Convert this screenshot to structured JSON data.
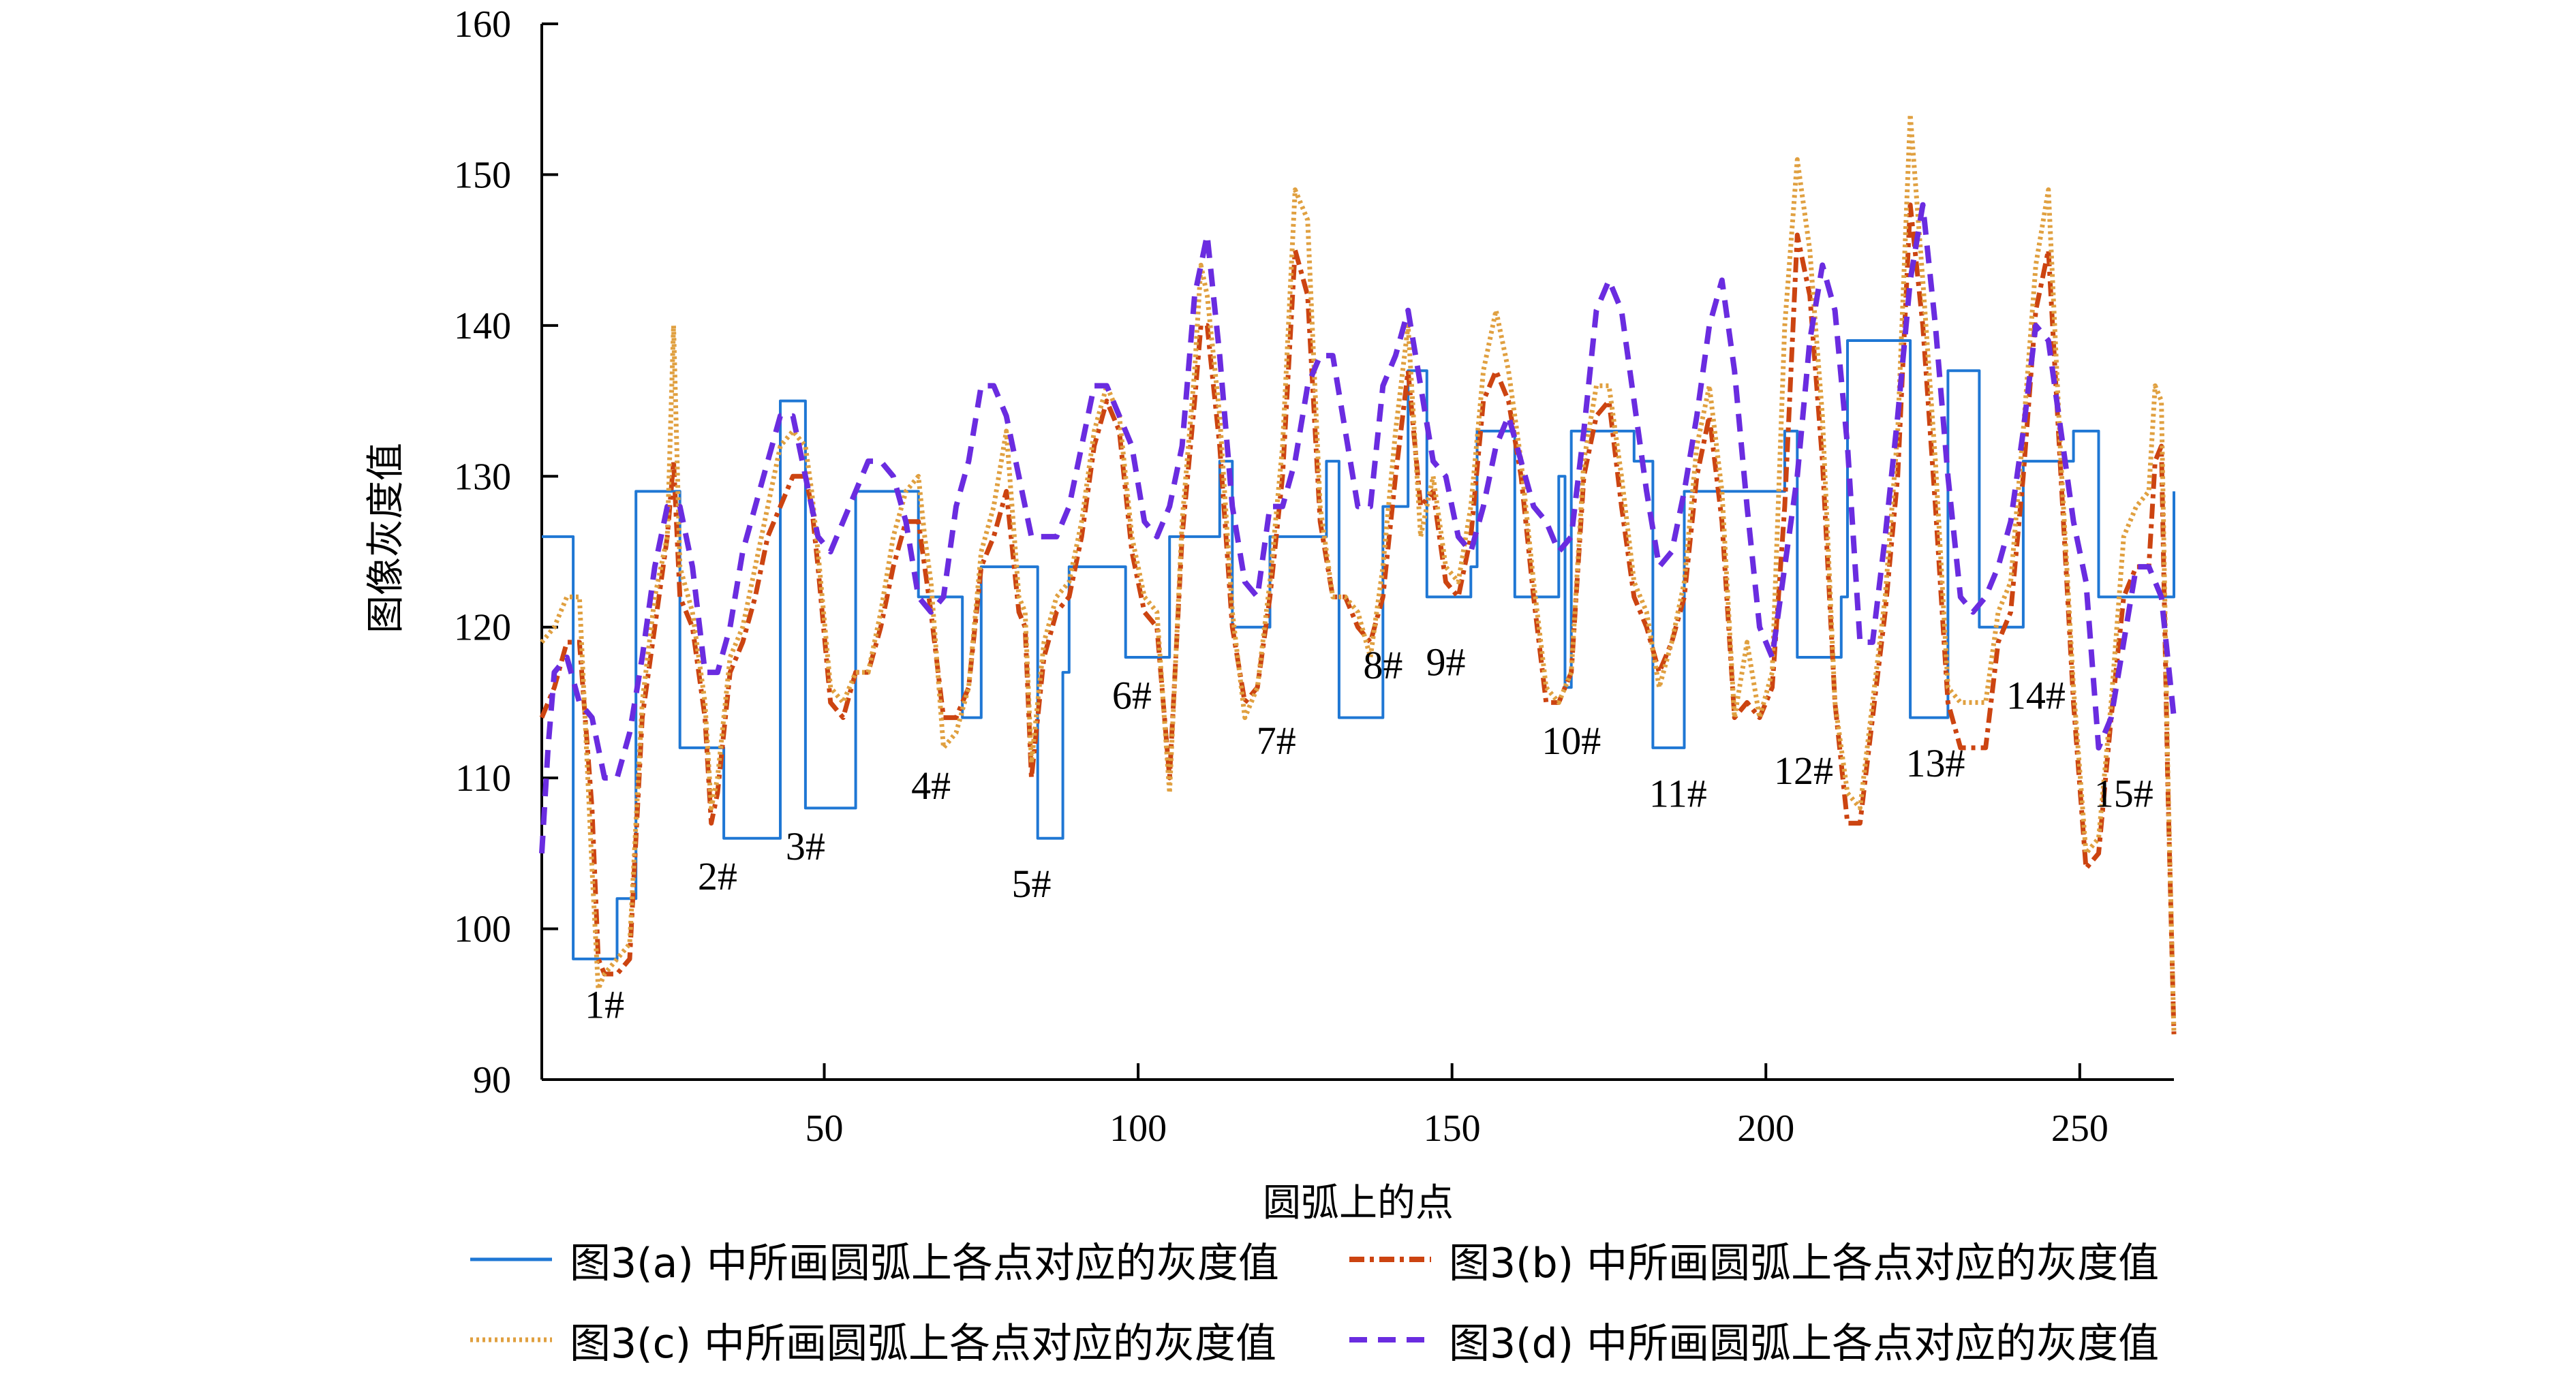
{
  "chart_data": {
    "type": "line",
    "title": "",
    "xlabel": "圆弧上的点",
    "ylabel": "图像灰度值",
    "xlim": [
      5,
      265
    ],
    "ylim": [
      90,
      160
    ],
    "xticks": [
      50,
      100,
      150,
      200,
      250
    ],
    "yticks": [
      90,
      100,
      110,
      120,
      130,
      140,
      150,
      160
    ],
    "grid": false,
    "legend_position": "bottom",
    "series": [
      {
        "name": "图3(a) 中所画圆弧上各点对应的灰度值",
        "color": "#1f77d4",
        "style": "solid",
        "step": true,
        "x": [
          5,
          9,
          10,
          14,
          17,
          18,
          20,
          25,
          27,
          31,
          34,
          37,
          43,
          44,
          47,
          49,
          55,
          56,
          65,
          67,
          72,
          73,
          75,
          79,
          80,
          84,
          85,
          88,
          89,
          93,
          94,
          98,
          99,
          105,
          106,
          112,
          113,
          114,
          115,
          120,
          121,
          123,
          124,
          125,
          130,
          131,
          132,
          138,
          139,
          142,
          143,
          145,
          146,
          150,
          151,
          153,
          154,
          159,
          160,
          166,
          167,
          168,
          169,
          170,
          178,
          179,
          180,
          182,
          186,
          187,
          193,
          194,
          203,
          204,
          205,
          212,
          213,
          222,
          223,
          228,
          229,
          233,
          234,
          240,
          241,
          248,
          249,
          252,
          253,
          264,
          265
        ],
        "y": [
          126,
          126,
          98,
          98,
          102,
          102,
          129,
          129,
          112,
          112,
          106,
          106,
          135,
          135,
          108,
          108,
          129,
          129,
          122,
          122,
          114,
          114,
          124,
          124,
          124,
          106,
          106,
          117,
          124,
          124,
          124,
          118,
          118,
          126,
          126,
          126,
          131,
          131,
          120,
          120,
          126,
          126,
          126,
          126,
          131,
          131,
          114,
          114,
          128,
          128,
          137,
          137,
          122,
          122,
          122,
          124,
          133,
          133,
          122,
          122,
          130,
          116,
          133,
          133,
          133,
          131,
          131,
          112,
          112,
          129,
          129,
          129,
          133,
          133,
          118,
          122,
          139,
          139,
          114,
          114,
          137,
          137,
          120,
          120,
          131,
          131,
          133,
          133,
          122,
          122,
          129
        ]
      },
      {
        "name": "图3(b) 中所画圆弧上各点对应的灰度值",
        "color": "#cc4411",
        "style": "dashdot",
        "x": [
          5,
          7,
          9,
          11,
          13,
          14,
          15,
          17,
          19,
          21,
          23,
          25,
          26,
          27,
          29,
          31,
          32,
          33,
          35,
          37,
          39,
          41,
          43,
          45,
          47,
          48,
          49,
          51,
          53,
          55,
          57,
          59,
          61,
          63,
          65,
          66,
          67,
          69,
          71,
          73,
          75,
          77,
          79,
          81,
          82,
          83,
          85,
          87,
          89,
          91,
          93,
          95,
          97,
          99,
          101,
          103,
          105,
          107,
          109,
          110,
          111,
          113,
          115,
          117,
          119,
          121,
          123,
          125,
          127,
          129,
          131,
          133,
          135,
          137,
          139,
          141,
          143,
          145,
          147,
          149,
          151,
          153,
          155,
          157,
          159,
          161,
          163,
          165,
          167,
          169,
          171,
          173,
          175,
          177,
          179,
          181,
          183,
          185,
          187,
          189,
          191,
          193,
          195,
          197,
          199,
          201,
          203,
          205,
          207,
          209,
          211,
          213,
          215,
          217,
          219,
          221,
          223,
          225,
          227,
          229,
          231,
          233,
          235,
          237,
          239,
          241,
          243,
          245,
          247,
          249,
          251,
          253,
          255,
          257,
          259,
          261,
          262,
          263,
          264,
          265
        ],
        "y": [
          114,
          116,
          119,
          119,
          108,
          98,
          97,
          97,
          98,
          114,
          120,
          126,
          131,
          122,
          120,
          114,
          107,
          109,
          117,
          119,
          122,
          126,
          128,
          130,
          130,
          128,
          124,
          115,
          114,
          117,
          117,
          120,
          124,
          127,
          127,
          124,
          121,
          114,
          114,
          116,
          124,
          126,
          129,
          121,
          120,
          110,
          118,
          121,
          122,
          126,
          132,
          135,
          133,
          125,
          121,
          120,
          110,
          126,
          135,
          140,
          140,
          132,
          120,
          115,
          116,
          122,
          130,
          145,
          142,
          127,
          122,
          122,
          120,
          119,
          122,
          130,
          137,
          128,
          129,
          123,
          122,
          126,
          135,
          137,
          135,
          130,
          122,
          115,
          115,
          117,
          130,
          134,
          135,
          128,
          122,
          120,
          117,
          119,
          122,
          130,
          134,
          127,
          114,
          115,
          114,
          116,
          128,
          146,
          142,
          131,
          115,
          107,
          107,
          114,
          121,
          130,
          148,
          140,
          128,
          115,
          112,
          112,
          112,
          119,
          121,
          130,
          141,
          145,
          130,
          115,
          104,
          105,
          114,
          122,
          124,
          124,
          131,
          132,
          110,
          93
        ]
      },
      {
        "name": "图3(c) 中所画圆弧上各点对应的灰度值",
        "color": "#e0a040",
        "style": "dotted",
        "x": [
          5,
          7,
          9,
          11,
          13,
          14,
          15,
          17,
          19,
          21,
          23,
          25,
          26,
          27,
          29,
          31,
          32,
          33,
          35,
          37,
          39,
          41,
          43,
          45,
          47,
          48,
          49,
          51,
          53,
          55,
          57,
          59,
          61,
          63,
          65,
          66,
          67,
          69,
          71,
          73,
          75,
          77,
          79,
          81,
          82,
          83,
          85,
          87,
          89,
          91,
          93,
          95,
          97,
          99,
          101,
          103,
          105,
          107,
          109,
          110,
          111,
          113,
          115,
          117,
          119,
          121,
          123,
          125,
          127,
          129,
          131,
          133,
          135,
          137,
          139,
          141,
          143,
          145,
          147,
          149,
          151,
          153,
          155,
          157,
          159,
          161,
          163,
          165,
          167,
          169,
          171,
          173,
          175,
          177,
          179,
          181,
          183,
          185,
          187,
          189,
          191,
          193,
          195,
          197,
          199,
          201,
          203,
          205,
          207,
          209,
          211,
          213,
          215,
          217,
          219,
          221,
          223,
          225,
          227,
          229,
          231,
          233,
          235,
          237,
          239,
          241,
          243,
          245,
          247,
          249,
          251,
          253,
          255,
          257,
          259,
          261,
          262,
          263,
          264,
          265
        ],
        "y": [
          119,
          120,
          122,
          122,
          104,
          96,
          97,
          98,
          99,
          115,
          122,
          126,
          140,
          124,
          121,
          115,
          108,
          110,
          118,
          120,
          124,
          128,
          132,
          133,
          132,
          129,
          125,
          116,
          115,
          117,
          117,
          121,
          126,
          129,
          130,
          126,
          123,
          112,
          113,
          116,
          125,
          128,
          133,
          122,
          121,
          111,
          119,
          122,
          123,
          127,
          133,
          136,
          134,
          126,
          122,
          121,
          109,
          127,
          137,
          144,
          142,
          134,
          121,
          114,
          116,
          123,
          132,
          149,
          147,
          128,
          122,
          122,
          121,
          118,
          124,
          133,
          140,
          126,
          130,
          124,
          123,
          128,
          137,
          141,
          137,
          131,
          123,
          116,
          115,
          117,
          131,
          136,
          136,
          130,
          123,
          121,
          116,
          119,
          123,
          132,
          136,
          129,
          114,
          119,
          114,
          117,
          140,
          151,
          145,
          134,
          115,
          109,
          108,
          115,
          122,
          133,
          154,
          143,
          131,
          116,
          115,
          115,
          115,
          121,
          123,
          133,
          144,
          149,
          131,
          116,
          105,
          106,
          115,
          126,
          128,
          129,
          136,
          135,
          111,
          93
        ]
      },
      {
        "name": "图3(d) 中所画圆弧上各点对应的灰度值",
        "color": "#6a2ce0",
        "style": "dashed",
        "x": [
          5,
          6,
          7,
          9,
          11,
          13,
          15,
          17,
          19,
          21,
          23,
          25,
          27,
          29,
          31,
          33,
          35,
          37,
          39,
          41,
          43,
          45,
          47,
          49,
          51,
          53,
          55,
          57,
          59,
          61,
          63,
          65,
          67,
          69,
          71,
          73,
          75,
          77,
          79,
          81,
          83,
          85,
          87,
          89,
          91,
          93,
          95,
          97,
          99,
          101,
          103,
          105,
          107,
          109,
          111,
          113,
          115,
          117,
          119,
          121,
          123,
          125,
          127,
          129,
          131,
          133,
          135,
          137,
          139,
          141,
          143,
          145,
          147,
          149,
          151,
          153,
          155,
          157,
          159,
          161,
          163,
          165,
          167,
          169,
          171,
          173,
          175,
          177,
          179,
          181,
          183,
          185,
          187,
          189,
          191,
          193,
          195,
          197,
          199,
          201,
          203,
          205,
          207,
          209,
          211,
          213,
          215,
          217,
          219,
          221,
          223,
          225,
          227,
          229,
          231,
          233,
          235,
          237,
          239,
          241,
          243,
          245,
          247,
          249,
          251,
          253,
          255,
          257,
          259,
          261,
          263,
          265
        ],
        "y": [
          105,
          112,
          117,
          118,
          115,
          114,
          110,
          110,
          113,
          118,
          124,
          128,
          128,
          124,
          117,
          117,
          120,
          125,
          128,
          131,
          134,
          134,
          130,
          126,
          125,
          127,
          129,
          131,
          131,
          130,
          127,
          122,
          121,
          122,
          128,
          131,
          136,
          136,
          134,
          130,
          126,
          126,
          126,
          128,
          132,
          136,
          136,
          134,
          132,
          127,
          126,
          128,
          132,
          142,
          146,
          138,
          128,
          123,
          122,
          128,
          128,
          131,
          136,
          138,
          138,
          133,
          128,
          128,
          136,
          138,
          141,
          136,
          131,
          130,
          126,
          125,
          128,
          132,
          134,
          131,
          128,
          127,
          125,
          126,
          133,
          141,
          143,
          141,
          135,
          129,
          124,
          125,
          129,
          134,
          140,
          143,
          137,
          128,
          120,
          118,
          124,
          130,
          139,
          144,
          141,
          132,
          119,
          119,
          126,
          134,
          143,
          148,
          140,
          130,
          122,
          121,
          122,
          124,
          127,
          133,
          140,
          139,
          133,
          127,
          123,
          112,
          114,
          119,
          124,
          124,
          122,
          114
        ]
      }
    ],
    "annotations": [
      {
        "text": "1#",
        "x": 15,
        "y": 95
      },
      {
        "text": "2#",
        "x": 33,
        "y": 103.5
      },
      {
        "text": "3#",
        "x": 47,
        "y": 105.5
      },
      {
        "text": "4#",
        "x": 67,
        "y": 109.5
      },
      {
        "text": "5#",
        "x": 83,
        "y": 103
      },
      {
        "text": "6#",
        "x": 99,
        "y": 115.5
      },
      {
        "text": "7#",
        "x": 122,
        "y": 112.5
      },
      {
        "text": "8#",
        "x": 139,
        "y": 117.5
      },
      {
        "text": "9#",
        "x": 149,
        "y": 117.7
      },
      {
        "text": "10#",
        "x": 169,
        "y": 112.5
      },
      {
        "text": "11#",
        "x": 186,
        "y": 109
      },
      {
        "text": "12#",
        "x": 206,
        "y": 110.5
      },
      {
        "text": "13#",
        "x": 227,
        "y": 111
      },
      {
        "text": "14#",
        "x": 243,
        "y": 115.5
      },
      {
        "text": "15#",
        "x": 257,
        "y": 109
      }
    ]
  }
}
